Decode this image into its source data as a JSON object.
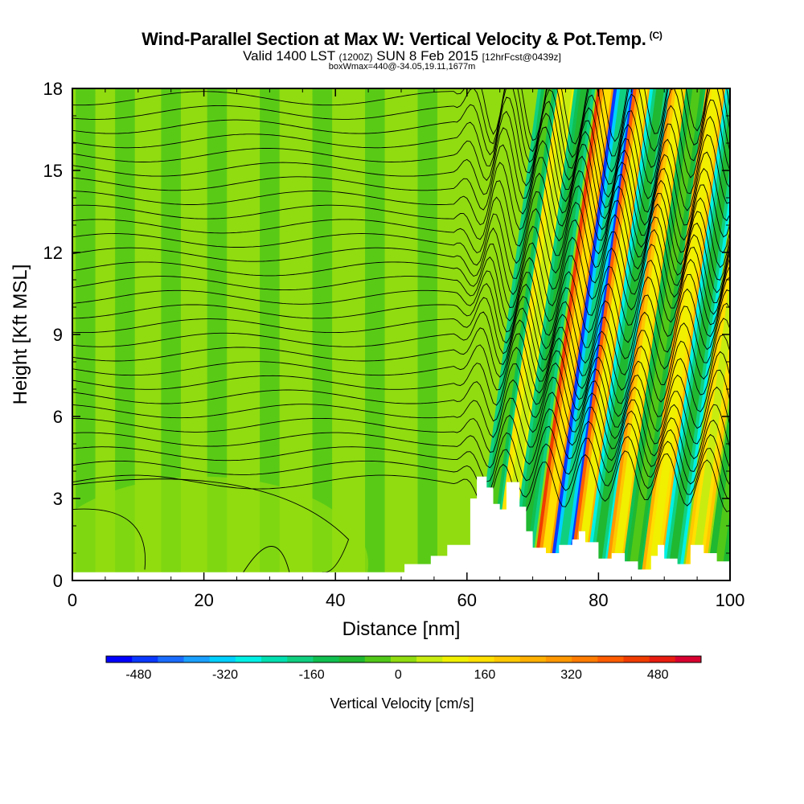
{
  "title": "Wind-Parallel Section at Max W: Vertical Velocity & Pot.Temp.",
  "copyright": "(C)",
  "subtitle": {
    "valid": "Valid 1400 LST",
    "utc": "(1200Z)",
    "date": "SUN 8 Feb 2015",
    "forecast": "[12hrFcst@0439z]"
  },
  "subtitle2": "boxWmax=440@-34.05,19.11,1677m",
  "colorbar": {
    "label": "Vertical Velocity [cm/s]",
    "ticks": [
      -480,
      -320,
      -160,
      0,
      160,
      320,
      480
    ],
    "min": -540,
    "max": 560,
    "colors": [
      "#0000ff",
      "#0a38ff",
      "#1a6cff",
      "#1aa0ff",
      "#00d0ff",
      "#00f0e6",
      "#00e0b0",
      "#10d080",
      "#10c050",
      "#20b830",
      "#50c818",
      "#90dc10",
      "#c8ec10",
      "#f0f000",
      "#ffe000",
      "#ffc800",
      "#ffb000",
      "#ff9800",
      "#ff7c00",
      "#ff5c00",
      "#f03c00",
      "#e81c10",
      "#d80030"
    ]
  },
  "chart_data": {
    "type": "heatmap",
    "title": "Wind-Parallel Section at Max W: Vertical Velocity & Pot.Temp.",
    "xlabel": "Distance [nm]",
    "ylabel": "Height [Kft MSL]",
    "xlim": [
      0,
      100
    ],
    "ylim": [
      0,
      18
    ],
    "xticks": [
      0,
      20,
      40,
      60,
      80,
      100
    ],
    "yticks": [
      0,
      3,
      6,
      9,
      12,
      15,
      18
    ],
    "field": "Vertical Velocity [cm/s]",
    "contours": "Potential Temperature",
    "max_updraft": 440,
    "terrain_profile": [
      {
        "x": 0,
        "y": 0.3
      },
      {
        "x": 50.5,
        "y": 0.3
      },
      {
        "x": 50.5,
        "y": 0.6
      },
      {
        "x": 54.5,
        "y": 0.6
      },
      {
        "x": 54.5,
        "y": 0.9
      },
      {
        "x": 57,
        "y": 0.9
      },
      {
        "x": 57,
        "y": 1.3
      },
      {
        "x": 60.5,
        "y": 1.3
      },
      {
        "x": 60.5,
        "y": 3.0
      },
      {
        "x": 61.5,
        "y": 3.0
      },
      {
        "x": 61.5,
        "y": 3.8
      },
      {
        "x": 63,
        "y": 3.8
      },
      {
        "x": 63,
        "y": 3.4
      },
      {
        "x": 64,
        "y": 3.4
      },
      {
        "x": 64,
        "y": 2.8
      },
      {
        "x": 65,
        "y": 2.8
      },
      {
        "x": 65,
        "y": 2.6
      },
      {
        "x": 66,
        "y": 2.6
      },
      {
        "x": 66,
        "y": 3.6
      },
      {
        "x": 68,
        "y": 3.6
      },
      {
        "x": 68,
        "y": 2.7
      },
      {
        "x": 69,
        "y": 2.7
      },
      {
        "x": 69,
        "y": 1.8
      },
      {
        "x": 70,
        "y": 1.8
      },
      {
        "x": 70,
        "y": 1.2
      },
      {
        "x": 72,
        "y": 1.2
      },
      {
        "x": 72,
        "y": 1.0
      },
      {
        "x": 74,
        "y": 1.0
      },
      {
        "x": 74,
        "y": 1.3
      },
      {
        "x": 76,
        "y": 1.3
      },
      {
        "x": 76,
        "y": 1.5
      },
      {
        "x": 77,
        "y": 1.5
      },
      {
        "x": 77,
        "y": 1.8
      },
      {
        "x": 78,
        "y": 1.8
      },
      {
        "x": 78,
        "y": 1.4
      },
      {
        "x": 80,
        "y": 1.4
      },
      {
        "x": 80,
        "y": 0.8
      },
      {
        "x": 82,
        "y": 0.8
      },
      {
        "x": 82,
        "y": 1.0
      },
      {
        "x": 84,
        "y": 1.0
      },
      {
        "x": 84,
        "y": 0.7
      },
      {
        "x": 86,
        "y": 0.7
      },
      {
        "x": 86,
        "y": 0.4
      },
      {
        "x": 88,
        "y": 0.4
      },
      {
        "x": 88,
        "y": 0.9
      },
      {
        "x": 89,
        "y": 0.9
      },
      {
        "x": 89,
        "y": 1.3
      },
      {
        "x": 90,
        "y": 1.3
      },
      {
        "x": 90,
        "y": 0.8
      },
      {
        "x": 92,
        "y": 0.8
      },
      {
        "x": 92,
        "y": 0.6
      },
      {
        "x": 94,
        "y": 0.6
      },
      {
        "x": 94,
        "y": 1.3
      },
      {
        "x": 96,
        "y": 1.3
      },
      {
        "x": 96,
        "y": 1.0
      },
      {
        "x": 98,
        "y": 1.0
      },
      {
        "x": 98,
        "y": 0.7
      },
      {
        "x": 100,
        "y": 0.7
      }
    ],
    "waves": [
      {
        "x": 62.5,
        "w": -180
      },
      {
        "x": 65.5,
        "w": 160
      },
      {
        "x": 68,
        "w": -200
      },
      {
        "x": 71.5,
        "w": 440
      },
      {
        "x": 74,
        "w": -480
      },
      {
        "x": 77,
        "w": 380
      },
      {
        "x": 79.5,
        "w": -260
      },
      {
        "x": 82.5,
        "w": 300
      },
      {
        "x": 85,
        "w": -120
      },
      {
        "x": 88,
        "w": 260
      },
      {
        "x": 91,
        "w": -260
      },
      {
        "x": 94.5,
        "w": 200
      },
      {
        "x": 98,
        "w": -100
      }
    ],
    "background_bands": [
      {
        "x": 2,
        "w": -40
      },
      {
        "x": 5,
        "w": 10
      },
      {
        "x": 8,
        "w": -30
      },
      {
        "x": 12,
        "w": 20
      },
      {
        "x": 15,
        "w": -20
      },
      {
        "x": 18,
        "w": 10
      },
      {
        "x": 22,
        "w": -30
      },
      {
        "x": 26,
        "w": 20
      },
      {
        "x": 30,
        "w": -20
      },
      {
        "x": 34,
        "w": 10
      },
      {
        "x": 38,
        "w": -20
      },
      {
        "x": 42,
        "w": 20
      },
      {
        "x": 46,
        "w": -20
      },
      {
        "x": 50,
        "w": 10
      },
      {
        "x": 54,
        "w": -20
      },
      {
        "x": 57,
        "w": 20
      }
    ],
    "contour_levels": 28
  }
}
